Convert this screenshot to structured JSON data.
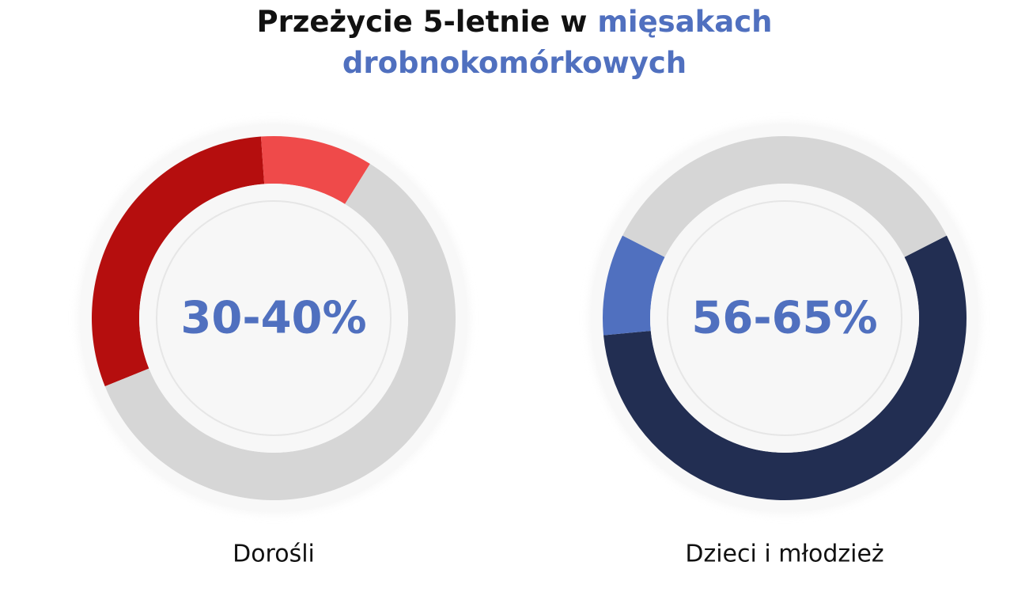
{
  "title": {
    "part1": "Przeżycie 5-letnie w",
    "part2": "mięsakach",
    "part3": "drobnokomórkowych"
  },
  "colors": {
    "track": "#d6d6d6",
    "inner": "#f7f7f7",
    "value_text": "#5070bf",
    "red_dark": "#b50e0e",
    "red_light": "#ef4a4a",
    "navy": "#222e52",
    "blue": "#5070bf"
  },
  "chart_data": [
    {
      "type": "pie",
      "value_label": "30-40%",
      "label": "Dorośli",
      "range": [
        30,
        40
      ],
      "slices": [
        {
          "value": 30,
          "color": "#b50e0e"
        },
        {
          "value": 10,
          "color": "#ef4a4a"
        },
        {
          "value": 60,
          "color": "#d6d6d6"
        }
      ]
    },
    {
      "type": "pie",
      "value_label": "56-65%",
      "label": "Dzieci i młodzież",
      "range": [
        56,
        65
      ],
      "slices": [
        {
          "value": 56,
          "color": "#222e52"
        },
        {
          "value": 9,
          "color": "#5070bf"
        },
        {
          "value": 35,
          "color": "#d6d6d6"
        }
      ]
    }
  ]
}
